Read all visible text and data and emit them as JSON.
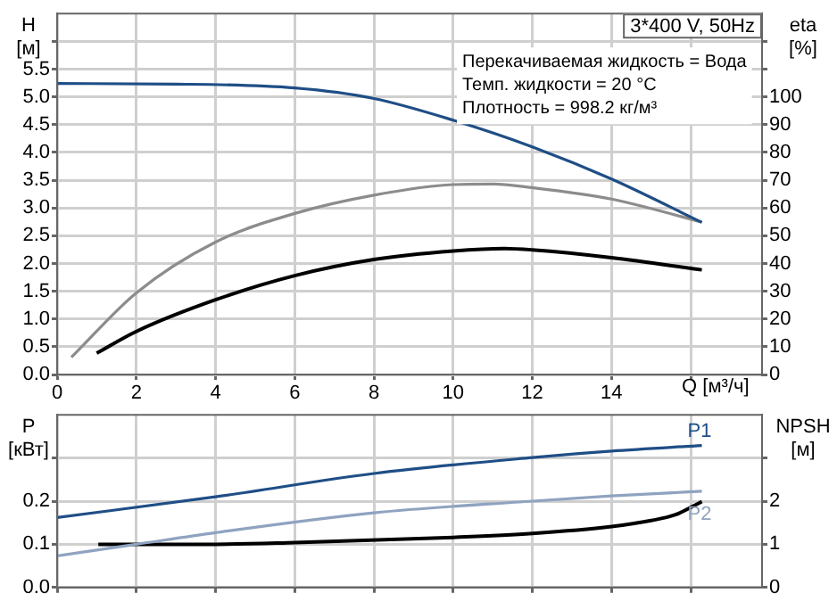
{
  "chart_data": [
    {
      "type": "line",
      "title": "3*400 V, 50Hz",
      "xlabel": "Q [м³/ч]",
      "ylabel": "H [м]",
      "y2label": "eta [%]",
      "annotations": [
        "Перекачиваемая жидкость = Вода",
        "Темп. жидкости = 20 °C",
        "Плотность = 998.2 кг/м³"
      ],
      "xlim": [
        0,
        17.8
      ],
      "xticks": [
        0,
        2,
        4,
        6,
        8,
        10,
        12,
        14,
        {
          "value": 16,
          "label": null
        }
      ],
      "ylim": [
        0,
        6.5
      ],
      "yticks": [
        {
          "value": 0,
          "label": "0.0"
        },
        0.5,
        {
          "value": 1,
          "label": "1.0"
        },
        1.5,
        {
          "value": 2,
          "label": "2.0"
        },
        2.5,
        {
          "value": 3,
          "label": "3.0"
        },
        3.5,
        {
          "value": 4,
          "label": "4.0"
        },
        4.5,
        {
          "value": 5,
          "label": "5.0"
        },
        5.5,
        {
          "value": 6,
          "label": null
        }
      ],
      "y2lim": [
        0,
        130
      ],
      "y2ticks": [
        0,
        10,
        20,
        30,
        40,
        50,
        60,
        70,
        80,
        90,
        100,
        {
          "value": 110,
          "label": null
        },
        {
          "value": 120,
          "label": null
        }
      ],
      "grid": true,
      "legend": false,
      "marker": "none",
      "line_style": "solid",
      "series": [
        {
          "color": "#1f4e86",
          "x": [
            0,
            3,
            6,
            8,
            10,
            12,
            14,
            16.28
          ],
          "values": [
            5.24,
            5.23,
            5.16,
            4.97,
            4.58,
            4.1,
            3.52,
            2.74
          ]
        },
        {
          "color": "#8c8c8c",
          "axis": "y2",
          "x": [
            0.36,
            2,
            4,
            6,
            8,
            10,
            11,
            12,
            14,
            16.28
          ],
          "values": [
            6.2,
            29.4,
            47.7,
            58,
            64.6,
            68.4,
            68.6,
            67.3,
            63.2,
            54.9
          ]
        },
        {
          "color": "#000000",
          "axis": "y2",
          "x": [
            1,
            2,
            4,
            6,
            8,
            10,
            11.3,
            12,
            14,
            16.28
          ],
          "values": [
            7.7,
            15.5,
            26.9,
            35.6,
            41.4,
            44.5,
            45.4,
            44.9,
            42.1,
            37.7
          ]
        }
      ]
    },
    {
      "type": "line",
      "ylabel": "P [кВт]",
      "y2label": "NPSH [м]",
      "xlim": [
        0,
        17.8
      ],
      "xticks": [
        0,
        2,
        4,
        6,
        8,
        10,
        12,
        14,
        16
      ],
      "ylim": [
        0,
        0.4
      ],
      "yticks": [
        {
          "value": 0,
          "label": "0.0"
        },
        0.1,
        0.2,
        {
          "value": 0.3,
          "label": null
        }
      ],
      "y2lim": [
        0,
        4
      ],
      "y2ticks": [
        0,
        1,
        2,
        {
          "value": 3,
          "label": null
        }
      ],
      "grid": true,
      "legend": false,
      "marker": "none",
      "line_style": "solid",
      "tick_labels": "y",
      "series": [
        {
          "name": "P1",
          "color": "#1f4e86",
          "x": [
            0,
            4,
            8,
            12,
            14,
            16.28
          ],
          "values": [
            0.162,
            0.21,
            0.264,
            0.301,
            0.316,
            0.329
          ]
        },
        {
          "name": "P2",
          "color": "#8fa3c0",
          "x": [
            0,
            2,
            4,
            8,
            12,
            14,
            16.28
          ],
          "values": [
            0.073,
            0.1,
            0.127,
            0.173,
            0.2,
            0.212,
            0.223
          ]
        },
        {
          "color": "#000000",
          "axis": "y2",
          "x": [
            1.04,
            4,
            6,
            10,
            12,
            14,
            15,
            15.6,
            16.28
          ],
          "values": [
            1.0,
            1.0,
            1.04,
            1.16,
            1.25,
            1.41,
            1.55,
            1.68,
            1.99
          ]
        }
      ]
    }
  ]
}
